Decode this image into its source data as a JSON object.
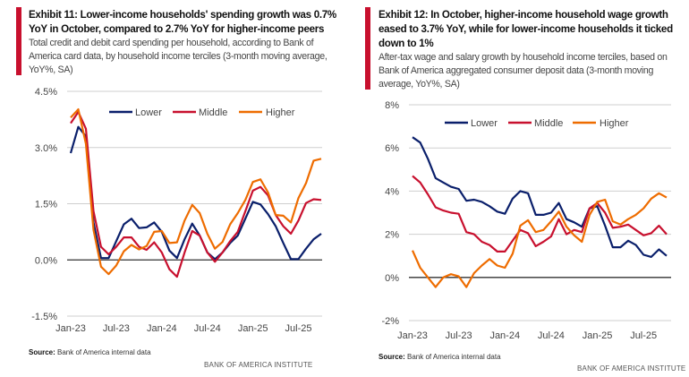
{
  "exhibits": [
    {
      "title": "Exhibit 11: Lower-income households' spending growth was 0.7% YoY in October, compared to 2.7% YoY for higher-income peers",
      "subtitle": "Total credit and debit card spending per household, according to Bank of America card data, by household income terciles (3-month moving average, YoY%, SA)",
      "source_label": "Source:",
      "source_text": " Bank of America internal data",
      "brand": "BANK OF AMERICA INSTITUTE"
    },
    {
      "title": "Exhibit 12: In October, higher-income household wage growth eased to 3.7% YoY, while for lower-income households it ticked down to 1%",
      "subtitle": "After-tax wage and salary growth by household income terciles, based on Bank of America aggregated consumer deposit data (3-month moving average, YoY%, SA)",
      "source_label": "Source:",
      "source_text": " Bank of America internal data",
      "brand": "BANK OF AMERICA INSTITUTE"
    }
  ],
  "colors": {
    "Lower": "#0a1f6b",
    "Middle": "#c8102e",
    "Higher": "#ee6c00",
    "accent": "#c8102e"
  },
  "chart_data": [
    {
      "type": "line",
      "title": "Exhibit 11",
      "x_start": "Jan-23",
      "n_months": 34,
      "x_tick_labels": [
        "Jan-23",
        "Jul-23",
        "Jan-24",
        "Jul-24",
        "Jan-25",
        "Jul-25"
      ],
      "y_tick_labels": [
        "4.5%",
        "3.0%",
        "1.5%",
        "0.0%",
        "-1.5%"
      ],
      "y_ticks": [
        4.5,
        3.0,
        1.5,
        0,
        -1.5
      ],
      "ylim": [
        -1.5,
        4.5
      ],
      "legend_position": "top-right",
      "series": [
        {
          "name": "Lower",
          "values": [
            2.85,
            3.55,
            3.3,
            1.0,
            0.05,
            0.05,
            0.5,
            0.95,
            1.1,
            0.85,
            0.87,
            1.0,
            0.75,
            0.25,
            0.05,
            0.55,
            0.97,
            0.65,
            0.2,
            0.02,
            0.2,
            0.45,
            0.65,
            1.1,
            1.55,
            1.48,
            1.22,
            0.9,
            0.45,
            0.02,
            0.02,
            0.3,
            0.55,
            0.7
          ]
        },
        {
          "name": "Middle",
          "values": [
            3.65,
            3.95,
            3.5,
            1.3,
            0.35,
            0.15,
            0.35,
            0.6,
            0.6,
            0.35,
            0.27,
            0.47,
            0.2,
            -0.25,
            -0.45,
            0.2,
            0.77,
            0.65,
            0.2,
            -0.05,
            0.2,
            0.5,
            0.75,
            1.3,
            1.85,
            1.95,
            1.72,
            1.2,
            0.9,
            0.7,
            1.05,
            1.52,
            1.62,
            1.6
          ]
        },
        {
          "name": "Higher",
          "values": [
            3.8,
            4.02,
            3.1,
            0.8,
            -0.18,
            -0.38,
            -0.15,
            0.23,
            0.4,
            0.28,
            0.37,
            0.75,
            0.77,
            0.45,
            0.47,
            1.05,
            1.47,
            1.25,
            0.7,
            0.3,
            0.48,
            0.95,
            1.25,
            1.6,
            2.08,
            2.15,
            1.8,
            1.2,
            1.18,
            1.0,
            1.65,
            2.05,
            2.65,
            2.7
          ]
        }
      ]
    },
    {
      "type": "line",
      "title": "Exhibit 12",
      "x_start": "Jan-23",
      "n_months": 34,
      "x_tick_labels": [
        "Jan-23",
        "Jul-23",
        "Jan-24",
        "Jul-24",
        "Jan-25",
        "Jul-25"
      ],
      "y_tick_labels": [
        "8%",
        "6%",
        "4%",
        "2%",
        "0%",
        "-2%"
      ],
      "y_ticks": [
        8,
        6,
        4,
        2,
        0,
        -2
      ],
      "ylim": [
        -2,
        8
      ],
      "legend_position": "top-center",
      "series": [
        {
          "name": "Lower",
          "values": [
            6.5,
            6.25,
            5.5,
            4.6,
            4.4,
            4.2,
            4.1,
            3.55,
            3.6,
            3.5,
            3.3,
            3.05,
            2.95,
            3.65,
            4.0,
            3.9,
            2.9,
            2.9,
            3.0,
            3.45,
            2.7,
            2.55,
            2.35,
            3.2,
            3.3,
            2.4,
            1.4,
            1.4,
            1.7,
            1.5,
            1.05,
            0.95,
            1.3,
            1.0
          ]
        },
        {
          "name": "Middle",
          "values": [
            4.7,
            4.4,
            3.85,
            3.25,
            3.1,
            3.0,
            2.95,
            2.1,
            2.0,
            1.65,
            1.5,
            1.2,
            1.2,
            1.7,
            2.2,
            2.05,
            1.45,
            1.65,
            1.9,
            2.7,
            2.0,
            2.2,
            2.1,
            3.2,
            3.45,
            3.0,
            2.3,
            2.35,
            2.45,
            2.2,
            1.95,
            2.05,
            2.4,
            2.0
          ]
        },
        {
          "name": "Higher",
          "values": [
            1.25,
            0.45,
            0.0,
            -0.45,
            0.0,
            0.15,
            0.05,
            -0.45,
            0.2,
            0.55,
            0.85,
            0.55,
            0.45,
            1.1,
            2.4,
            2.65,
            2.1,
            2.2,
            2.6,
            3.05,
            2.35,
            1.95,
            1.65,
            2.9,
            3.5,
            3.6,
            2.6,
            2.45,
            2.7,
            2.9,
            3.2,
            3.65,
            3.9,
            3.7
          ]
        }
      ]
    }
  ]
}
